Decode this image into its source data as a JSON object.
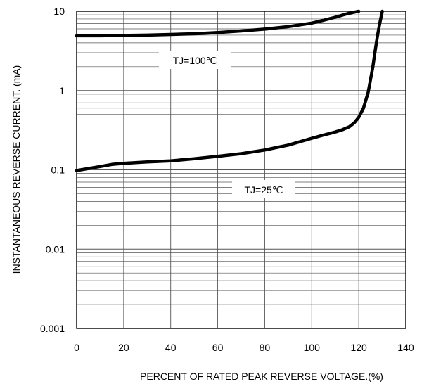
{
  "chart_data": {
    "type": "line",
    "title": "",
    "xlabel": "PERCENT OF RATED PEAK REVERSE VOLTAGE.(%)",
    "ylabel": "INSTANTANEOUS REVERSE CURRENT. (mA)",
    "xlim": [
      0,
      140
    ],
    "ylim": [
      0.001,
      10
    ],
    "yscale": "log",
    "grid": true,
    "x_ticks": [
      0,
      20,
      40,
      60,
      80,
      100,
      120,
      140
    ],
    "x_tick_labels": [
      "0",
      "20",
      "40",
      "60",
      "80",
      "100",
      "120",
      "140"
    ],
    "y_ticks": [
      0.001,
      0.01,
      0.1,
      1,
      10
    ],
    "y_tick_labels": [
      "0.001",
      "0.01",
      "0.1",
      "1",
      "10"
    ],
    "series": [
      {
        "name": "TJ=100℃",
        "x": [
          0,
          10,
          20,
          30,
          40,
          50,
          60,
          70,
          80,
          90,
          100,
          105,
          110,
          115,
          120
        ],
        "y": [
          4.9,
          4.9,
          4.95,
          5.0,
          5.1,
          5.2,
          5.4,
          5.65,
          5.95,
          6.4,
          7.1,
          7.7,
          8.4,
          9.3,
          10.0
        ]
      },
      {
        "name": "TJ=25℃",
        "x": [
          0,
          5,
          10,
          15,
          20,
          30,
          40,
          50,
          60,
          70,
          80,
          90,
          100,
          105,
          110,
          113,
          116,
          118,
          120,
          122,
          124,
          126,
          127,
          128,
          129,
          130
        ],
        "y": [
          0.098,
          0.104,
          0.11,
          0.117,
          0.121,
          0.126,
          0.13,
          0.138,
          0.148,
          0.16,
          0.178,
          0.205,
          0.25,
          0.275,
          0.3,
          0.32,
          0.35,
          0.39,
          0.46,
          0.6,
          0.95,
          2.0,
          3.2,
          5.0,
          7.2,
          10.0
        ]
      }
    ],
    "annotations": [
      "TJ=100℃",
      "TJ=25℃"
    ],
    "colors": {
      "line": "#000000",
      "grid": "#555555",
      "background": "#ffffff"
    }
  }
}
